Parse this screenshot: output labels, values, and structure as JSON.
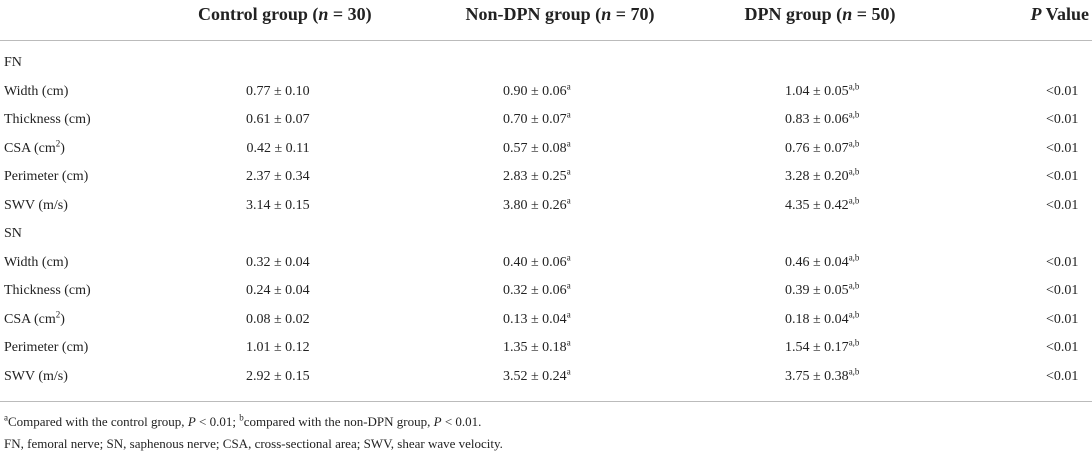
{
  "table": {
    "header": [
      [
        "Control group (",
        {
          "i": "n"
        },
        " = 30)"
      ],
      [
        "Non-DPN group (",
        {
          "i": "n"
        },
        " = 70)"
      ],
      [
        "DPN group (",
        {
          "i": "n"
        },
        " = 50)"
      ],
      [
        {
          "i": "P"
        },
        " Value"
      ]
    ],
    "sections": [
      {
        "label": "FN",
        "rows": [
          {
            "label": [
              "Width (cm)"
            ],
            "cells": [
              [
                "0.77 ± 0.10"
              ],
              [
                "0.90 ± 0.06",
                {
                  "sup": "a"
                }
              ],
              [
                "1.04 ± 0.05",
                {
                  "sup": "a,b"
                }
              ],
              [
                "<0.01"
              ]
            ]
          },
          {
            "label": [
              "Thickness (cm)"
            ],
            "cells": [
              [
                "0.61 ± 0.07"
              ],
              [
                "0.70 ± 0.07",
                {
                  "sup": "a"
                }
              ],
              [
                "0.83 ± 0.06",
                {
                  "sup": "a,b"
                }
              ],
              [
                "<0.01"
              ]
            ]
          },
          {
            "label": [
              "CSA (cm",
              {
                "sup": "2"
              },
              ")"
            ],
            "cells": [
              [
                "0.42 ± 0.11"
              ],
              [
                "0.57 ± 0.08",
                {
                  "sup": "a"
                }
              ],
              [
                "0.76 ± 0.07",
                {
                  "sup": "a,b"
                }
              ],
              [
                "<0.01"
              ]
            ]
          },
          {
            "label": [
              "Perimeter (cm)"
            ],
            "cells": [
              [
                "2.37 ± 0.34"
              ],
              [
                "2.83 ± 0.25",
                {
                  "sup": "a"
                }
              ],
              [
                "3.28 ± 0.20",
                {
                  "sup": "a,b"
                }
              ],
              [
                "<0.01"
              ]
            ]
          },
          {
            "label": [
              "SWV (m/s)"
            ],
            "cells": [
              [
                "3.14 ± 0.15"
              ],
              [
                "3.80 ± 0.26",
                {
                  "sup": "a"
                }
              ],
              [
                "4.35 ± 0.42",
                {
                  "sup": "a,b"
                }
              ],
              [
                "<0.01"
              ]
            ]
          }
        ]
      },
      {
        "label": "SN",
        "rows": [
          {
            "label": [
              "Width (cm)"
            ],
            "cells": [
              [
                "0.32 ± 0.04"
              ],
              [
                "0.40 ± 0.06",
                {
                  "sup": "a"
                }
              ],
              [
                "0.46 ± 0.04",
                {
                  "sup": "a,b"
                }
              ],
              [
                "<0.01"
              ]
            ]
          },
          {
            "label": [
              "Thickness (cm)"
            ],
            "cells": [
              [
                "0.24 ± 0.04"
              ],
              [
                "0.32 ± 0.06",
                {
                  "sup": "a"
                }
              ],
              [
                "0.39 ± 0.05",
                {
                  "sup": "a,b"
                }
              ],
              [
                "<0.01"
              ]
            ]
          },
          {
            "label": [
              "CSA (cm",
              {
                "sup": "2"
              },
              ")"
            ],
            "cells": [
              [
                "0.08 ± 0.02"
              ],
              [
                "0.13 ± 0.04",
                {
                  "sup": "a"
                }
              ],
              [
                "0.18 ± 0.04",
                {
                  "sup": "a,b"
                }
              ],
              [
                "<0.01"
              ]
            ]
          },
          {
            "label": [
              "Perimeter (cm)"
            ],
            "cells": [
              [
                "1.01 ± 0.12"
              ],
              [
                "1.35 ± 0.18",
                {
                  "sup": "a"
                }
              ],
              [
                "1.54 ± 0.17",
                {
                  "sup": "a,b"
                }
              ],
              [
                "<0.01"
              ]
            ]
          },
          {
            "label": [
              "SWV (m/s)"
            ],
            "cells": [
              [
                "2.92 ± 0.15"
              ],
              [
                "3.52 ± 0.24",
                {
                  "sup": "a"
                }
              ],
              [
                "3.75 ± 0.38",
                {
                  "sup": "a,b"
                }
              ],
              [
                "<0.01"
              ]
            ]
          }
        ]
      }
    ]
  },
  "footnotes": [
    [
      {
        "sup": "a"
      },
      "Compared with the control group, ",
      {
        "i": "P"
      },
      " < 0.01; ",
      {
        "sup": "b"
      },
      "compared with the non-DPN group, ",
      {
        "i": "P"
      },
      " < 0.01."
    ],
    [
      "FN, femoral nerve; SN, saphenous nerve; CSA, cross-sectional area; SWV, shear wave velocity."
    ]
  ]
}
